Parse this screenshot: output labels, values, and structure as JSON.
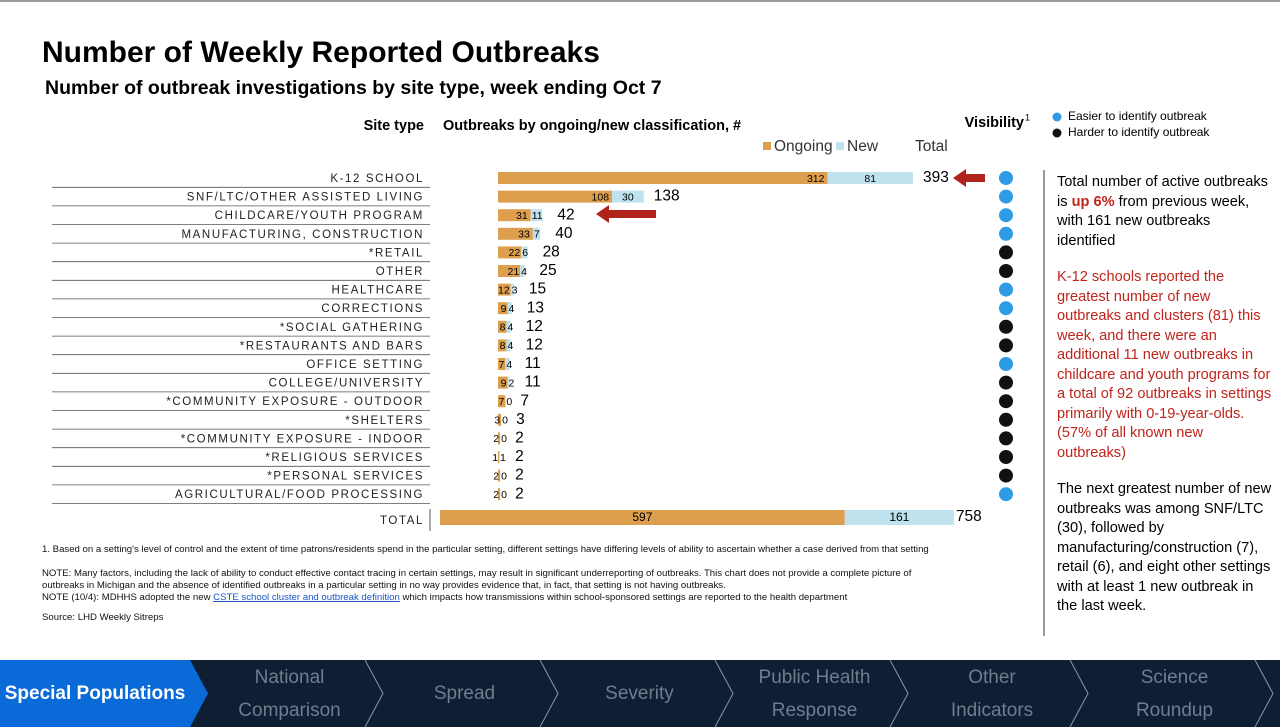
{
  "title": "Number of Weekly Reported Outbreaks",
  "subtitle": "Number of outbreak investigations by site type, week ending Oct 7",
  "chart_data": {
    "type": "bar",
    "stacked": true,
    "orientation": "horizontal",
    "category_header": "Site type",
    "value_header": "Outbreaks by ongoing/new classification, #",
    "visibility_header": "Visibility",
    "visibility_footnote": "1",
    "categories": [
      "K-12 SCHOOL",
      "SNF/LTC/OTHER ASSISTED LIVING",
      "CHILDCARE/YOUTH PROGRAM",
      "MANUFACTURING, CONSTRUCTION",
      "*RETAIL",
      "OTHER",
      "HEALTHCARE",
      "CORRECTIONS",
      "*SOCIAL GATHERING",
      "*RESTAURANTS AND BARS",
      "OFFICE SETTING",
      "COLLEGE/UNIVERSITY",
      "*COMMUNITY EXPOSURE - OUTDOOR",
      "*SHELTERS",
      "*COMMUNITY EXPOSURE - INDOOR",
      "*RELIGIOUS SERVICES",
      "*PERSONAL SERVICES",
      "AGRICULTURAL/FOOD PROCESSING"
    ],
    "series": [
      {
        "name": "Ongoing",
        "color": "#dd9f4e",
        "values": [
          312,
          108,
          31,
          33,
          22,
          21,
          12,
          9,
          8,
          8,
          7,
          9,
          7,
          3,
          2,
          1,
          2,
          2
        ]
      },
      {
        "name": "New",
        "color": "#bfe3ee",
        "values": [
          81,
          30,
          11,
          7,
          6,
          4,
          3,
          4,
          4,
          4,
          4,
          2,
          0,
          0,
          0,
          1,
          0,
          0
        ]
      }
    ],
    "totals_label": "Total",
    "totals": [
      393,
      138,
      42,
      40,
      28,
      25,
      15,
      13,
      12,
      12,
      11,
      11,
      7,
      3,
      2,
      2,
      2,
      2
    ],
    "visibility_colors": [
      "#2e9be6",
      "#2e9be6",
      "#2e9be6",
      "#2e9be6",
      "#111111",
      "#111111",
      "#2e9be6",
      "#2e9be6",
      "#111111",
      "#111111",
      "#2e9be6",
      "#111111",
      "#111111",
      "#111111",
      "#111111",
      "#111111",
      "#111111",
      "#2e9be6"
    ],
    "visibility_legend": [
      {
        "label": "Easier to identify outbreak",
        "color": "#2e9be6"
      },
      {
        "label": "Harder to identify outbreak",
        "color": "#111111"
      }
    ],
    "total_row": {
      "label": "TOTAL",
      "ongoing": 597,
      "new": 161,
      "total": 758
    }
  },
  "footnote": "1. Based on a setting's level of control and the extent of time patrons/residents spend in the particular setting, different settings have differing levels of ability to ascertain whether a case derived from that setting",
  "note_lines": [
    "NOTE: Many factors, including the lack of ability to conduct effective contact tracing in certain settings, may result in significant underreporting of outbreaks. This chart does not provide a complete picture of",
    "outbreaks in Michigan and the absence of identified outbreaks in a particular setting in no way provides evidence that, in fact, that setting is not having outbreaks."
  ],
  "note_update": [
    "NOTE (10/4): MDHHS adopted the new ",
    "CSTE school cluster and outbreak definition",
    " which impacts how transmissions within school-sponsored settings are reported to the health department"
  ],
  "source": "Source: LHD Weekly Sitreps",
  "summary": {
    "p1": [
      "Total number of active outbreaks is ",
      "up 6%",
      " from previous week, with 161 new outbreaks identified"
    ],
    "p2": "K-12 schools reported the greatest number of new outbreaks and clusters (81) this week, and there were an additional 11 new outbreaks in childcare and youth programs for a total of 92 outbreaks in settings primarily with 0-19-year-olds. (57% of all known new outbreaks)",
    "p3": "The next greatest number of new outbreaks was among SNF/LTC (30), followed by manufacturing/construction (7), retail (6), and eight other settings with at least 1 new outbreak in the last week."
  },
  "nav": [
    "Special Populations",
    "National Comparison",
    "Spread",
    "Severity",
    "Public Health Response",
    "Other Indicators",
    "Science Roundup"
  ]
}
